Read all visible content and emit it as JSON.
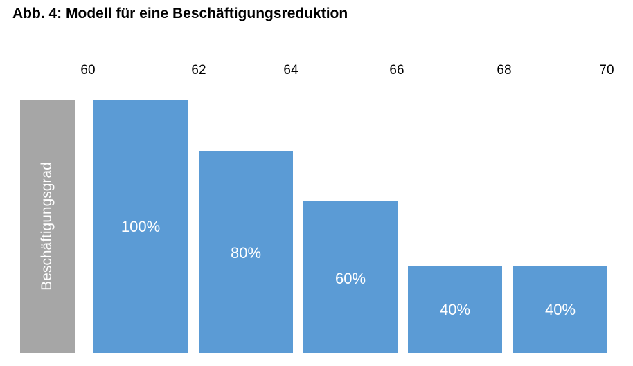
{
  "chart_data": {
    "type": "bar",
    "title": "Abb. 4: Modell für eine Beschäftigungsreduktion",
    "ylabel": "Beschäftigungsgrad",
    "x_ticks": [
      "60",
      "62",
      "64",
      "66",
      "68",
      "70"
    ],
    "categories": [
      "60-62",
      "62-64",
      "64-66",
      "66-68",
      "68-70"
    ],
    "values": [
      100,
      80,
      60,
      40,
      40
    ],
    "value_labels": [
      "100%",
      "80%",
      "60%",
      "40%",
      "40%"
    ],
    "colors": {
      "bar": "#5b9bd5",
      "axis_box": "#a6a6a6"
    }
  }
}
